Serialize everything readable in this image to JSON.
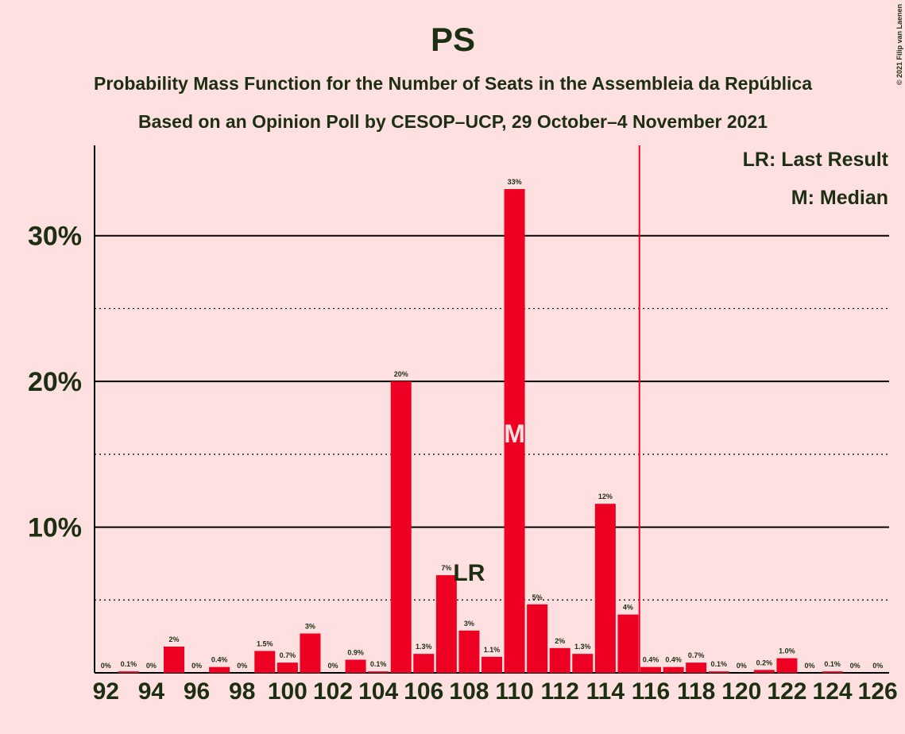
{
  "chart_data": {
    "type": "bar",
    "title": "PS",
    "subtitle": "Probability Mass Function for the Number of Seats in the Assembleia da República",
    "subtitle2": "Based on an Opinion Poll by CESOP–UCP, 29 October–4 November 2021",
    "copyright": "© 2021 Filip van Laenen",
    "categories": [
      "92",
      null,
      "94",
      null,
      "96",
      null,
      "98",
      null,
      "100",
      null,
      "102",
      null,
      "104",
      null,
      "106",
      null,
      "108",
      null,
      "110",
      null,
      "112",
      null,
      "114",
      null,
      "116",
      null,
      "118",
      null,
      "120",
      null,
      "122",
      null,
      "124",
      null,
      "126"
    ],
    "values": [
      0,
      0.1,
      0,
      1.8,
      0,
      0.4,
      0,
      1.5,
      0.7,
      2.7,
      0,
      0.9,
      0.1,
      20.0,
      1.3,
      6.7,
      2.9,
      1.1,
      33.2,
      4.7,
      1.7,
      1.3,
      11.6,
      4.0,
      0.4,
      0.4,
      0.7,
      0.1,
      0,
      0.2,
      1.0,
      0,
      0.1,
      0,
      0
    ],
    "value_labels": [
      "0%",
      "0.1%",
      "0%",
      "2%",
      "0%",
      "0.4%",
      "0%",
      "1.5%",
      "0.7%",
      "3%",
      "0%",
      "0.9%",
      "0.1%",
      "20%",
      "1.3%",
      "7%",
      "3%",
      "1.1%",
      "33%",
      "5%",
      "2%",
      "1.3%",
      "12%",
      "4%",
      "0.4%",
      "0.4%",
      "0.7%",
      "0.1%",
      "0%",
      "0.2%",
      "1.0%",
      "0%",
      "0.1%",
      "0%",
      "0%"
    ],
    "color": "#ee0022",
    "ylim": [
      0,
      36.2
    ],
    "yticks": [
      {
        "value": 10,
        "label": "10%"
      },
      {
        "value": 20,
        "label": "20%"
      },
      {
        "value": 30,
        "label": "30%"
      }
    ],
    "minor_yticks": [
      5,
      15,
      25
    ],
    "grid": true,
    "last_result_index": 16,
    "last_result_label": "LR",
    "median_index": 18,
    "median_label": "M",
    "majority_line_index": 23.5,
    "legend": [
      "LR: Last Result",
      "M: Median"
    ]
  }
}
